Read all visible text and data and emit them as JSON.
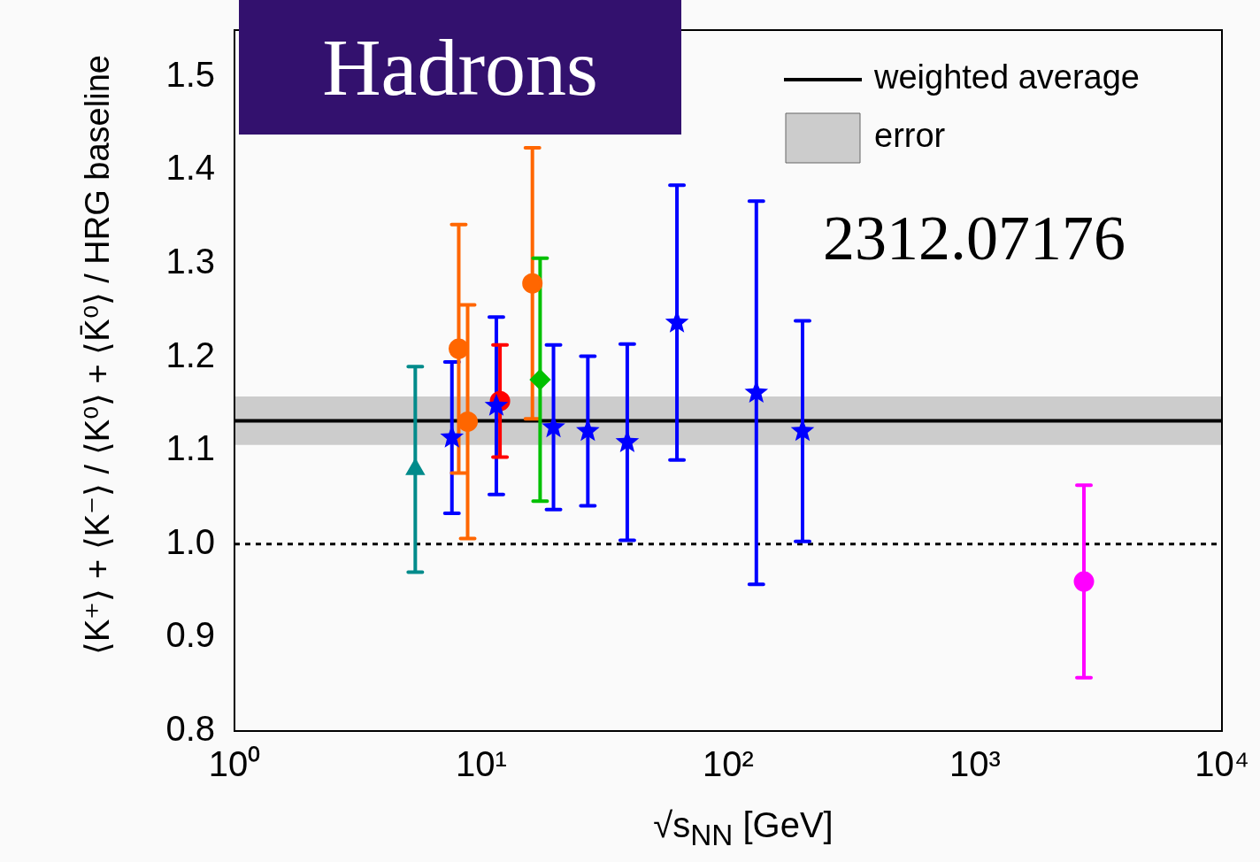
{
  "chart_data": {
    "type": "scatter",
    "title": "Hadrons",
    "xlabel": "√s$_{NN}$ [GeV]",
    "ylabel": "⟨K⁺⟩ + ⟨K⁻⟩ / ⟨K⁰⟩ + ⟨K̄⁰⟩ / HRG baseline",
    "annotations": [
      "2312.07176"
    ],
    "log": "x",
    "xlim": [
      1,
      10000
    ],
    "xticks": [
      {
        "value": 1,
        "label": "10⁰"
      },
      {
        "value": 10,
        "label": "10¹"
      },
      {
        "value": 100,
        "label": "10²"
      },
      {
        "value": 1000,
        "label": "10³"
      },
      {
        "value": 10000,
        "label": "10⁴"
      }
    ],
    "ylim": [
      0.8,
      1.55
    ],
    "yticks": [
      {
        "value": 0.8,
        "label": "0.8"
      },
      {
        "value": 0.9,
        "label": "0.9"
      },
      {
        "value": 1.0,
        "label": "1.0"
      },
      {
        "value": 1.1,
        "label": "1.1"
      },
      {
        "value": 1.2,
        "label": "1.2"
      },
      {
        "value": 1.3,
        "label": "1.3"
      },
      {
        "value": 1.4,
        "label": "1.4"
      },
      {
        "value": 1.5,
        "label": "1.5"
      }
    ],
    "grid": false,
    "legend": "top right",
    "ref_lines": [
      {
        "axis": "y",
        "value": 1.132,
        "label": "weighted average",
        "color": "#000000",
        "line_style": "solid"
      },
      {
        "axis": "y",
        "value": 1.0,
        "color": "#000000",
        "line_style": "dotted"
      }
    ],
    "bands": [
      {
        "axis": "y",
        "from": 1.106,
        "to": 1.158,
        "label": "error",
        "color": "#cccccc"
      }
    ],
    "series": [
      {
        "color": "#008b8b",
        "marker": "triangle",
        "x": [
          5.4
        ],
        "values": [
          1.08
        ],
        "errors": [
          0.11
        ]
      },
      {
        "color": "#0000ff",
        "marker": "star",
        "x": [
          7.6,
          11.5,
          19.6,
          27,
          39,
          62,
          130,
          200
        ],
        "values": [
          1.114,
          1.148,
          1.125,
          1.121,
          1.109,
          1.237,
          1.162,
          1.121
        ],
        "errors": [
          0.081,
          0.095,
          0.088,
          0.08,
          0.105,
          0.147,
          0.205,
          0.118
        ]
      },
      {
        "color": "#ff6600",
        "marker": "circle",
        "x": [
          8.1,
          8.8,
          16.1
        ],
        "values": [
          1.209,
          1.131,
          1.279
        ],
        "errors": [
          0.133,
          0.125,
          0.145
        ]
      },
      {
        "color": "#ff0000",
        "marker": "circle",
        "x": [
          11.9
        ],
        "values": [
          1.153
        ],
        "errors": [
          0.06
        ]
      },
      {
        "color": "#00c000",
        "marker": "diamond",
        "x": [
          17.3
        ],
        "values": [
          1.176
        ],
        "errors": [
          0.13
        ]
      },
      {
        "color": "#ff00ff",
        "marker": "circle",
        "x": [
          2760
        ],
        "values": [
          0.96
        ],
        "errors": [
          0.103
        ]
      }
    ]
  }
}
